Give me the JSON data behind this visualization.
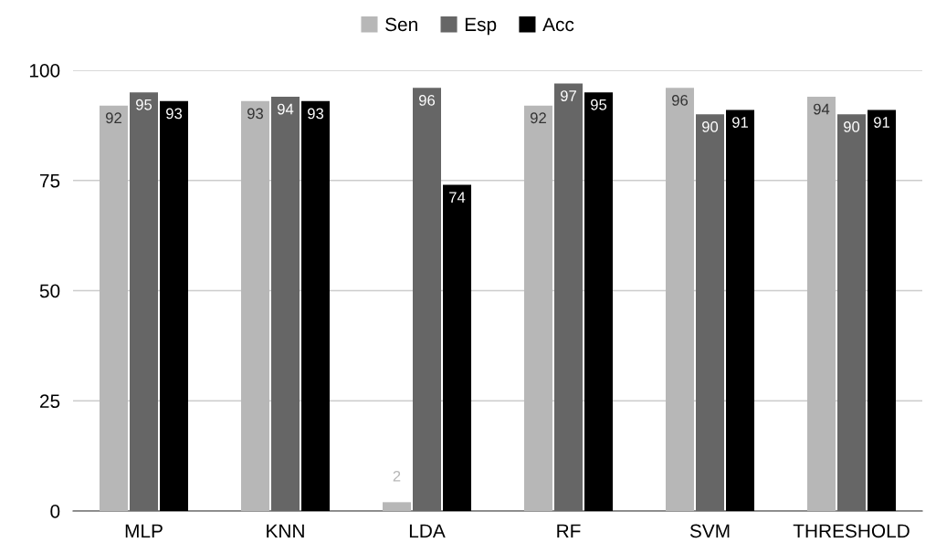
{
  "chart_data": {
    "type": "bar",
    "categories": [
      "MLP",
      "KNN",
      "LDA",
      "RF",
      "SVM",
      "THRESHOLD"
    ],
    "series": [
      {
        "name": "Sen",
        "color": "#b7b7b7",
        "values": [
          92,
          93,
          2,
          92,
          96,
          94
        ]
      },
      {
        "name": "Esp",
        "color": "#666666",
        "values": [
          95,
          94,
          96,
          97,
          90,
          90
        ]
      },
      {
        "name": "Acc",
        "color": "#000000",
        "values": [
          93,
          93,
          74,
          95,
          91,
          91
        ]
      }
    ],
    "ylim": [
      0,
      100
    ],
    "yticks": [
      0,
      25,
      50,
      75,
      100
    ],
    "grid": "y",
    "legend": "top",
    "data_labels": true
  }
}
